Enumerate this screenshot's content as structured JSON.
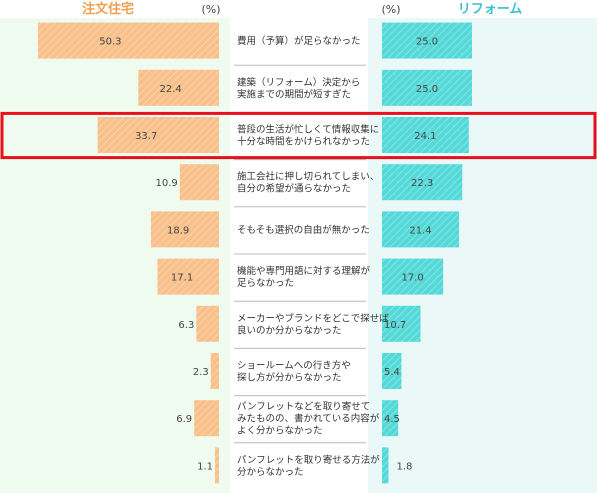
{
  "chart_data": {
    "type": "bar",
    "series": [
      {
        "name": "注文住宅",
        "unit": "(%)",
        "values": [
          50.3,
          22.4,
          33.7,
          10.9,
          18.9,
          17.1,
          6.3,
          2.3,
          6.9,
          1.1
        ],
        "labels": [
          "50.3",
          "22.4",
          "33.7",
          "10.9",
          "18.9",
          "17.1",
          "6.3",
          "2.3",
          "6.9",
          "1.1"
        ]
      },
      {
        "name": "リフォーム",
        "unit": "(%)",
        "values": [
          25.0,
          25.0,
          24.1,
          22.3,
          21.4,
          17.0,
          10.7,
          5.4,
          4.5,
          1.8
        ],
        "labels": [
          "25.0",
          "25.0",
          "24.1",
          "22.3",
          "21.4",
          "17.0",
          "10.7",
          "5.4",
          "4.5",
          "1.8"
        ]
      }
    ],
    "categories": [
      [
        "費用（予算）が足らなかった"
      ],
      [
        "建築（リフォーム）決定から",
        "実施までの期間が短すぎた"
      ],
      [
        "普段の生活が忙しくて情報収集に",
        "十分な時間をかけられなかった"
      ],
      [
        "施工会社に押し切られてしまい、",
        "自分の希望が通らなかった"
      ],
      [
        "そもそも選択の自由が無かった"
      ],
      [
        "機能や専門用語に対する理解が",
        "足らなかった"
      ],
      [
        "メーカーやブランドをどこで探せば",
        "良いのか分からなかった"
      ],
      [
        "ショールームへの行き方や",
        "探し方が分からなかった"
      ],
      [
        "パンフレットなどを取り寄せて",
        "みたものの、書かれている内容が",
        "よく分からなかった"
      ],
      [
        "パンフレットを取り寄せる方法が",
        "分からなかった"
      ]
    ],
    "highlight_index": 2,
    "colors": {
      "left_bar": "#f8c08a",
      "left_title": "#f0a050",
      "right_bar": "#55d8d8",
      "right_title": "#3cc0d0",
      "left_bg": "#f0fbf0",
      "right_bg": "#eaf8f8",
      "highlight_border": "#e8101c"
    }
  }
}
